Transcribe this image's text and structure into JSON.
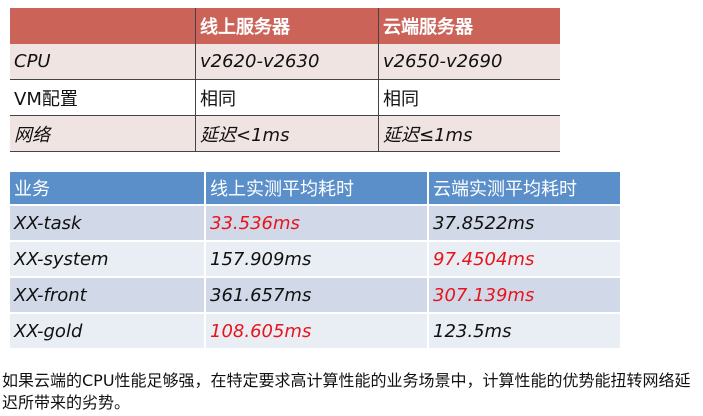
{
  "server_table": {
    "headers": [
      "",
      "线上服务器",
      "云端服务器"
    ],
    "rows": [
      {
        "label": "CPU",
        "online": "v2620-v2630",
        "cloud": "v2650-v2690"
      },
      {
        "label": "VM配置",
        "online": "相同",
        "cloud": "相同"
      },
      {
        "label": "网络",
        "online": "延迟<1ms",
        "cloud": "延迟≤1ms"
      }
    ]
  },
  "perf_table": {
    "headers": [
      "业务",
      "线上实测平均耗时",
      "云端实测平均耗时"
    ],
    "highlight_color": "#e8141c",
    "rows": [
      {
        "service": "XX-task",
        "online": "33.536ms",
        "cloud": "37.8522ms",
        "faster": "online"
      },
      {
        "service": "XX-system",
        "online": "157.909ms",
        "cloud": "97.4504ms",
        "faster": "cloud"
      },
      {
        "service": "XX-front",
        "online": "361.657ms",
        "cloud": "307.139ms",
        "faster": "cloud"
      },
      {
        "service": "XX-gold",
        "online": "108.605ms",
        "cloud": "123.5ms",
        "faster": "online"
      }
    ]
  },
  "note": "如果云端的CPU性能足够强，在特定要求高计算性能的业务场景中，计算性能的优势能扭转网络延迟所带来的劣势。"
}
